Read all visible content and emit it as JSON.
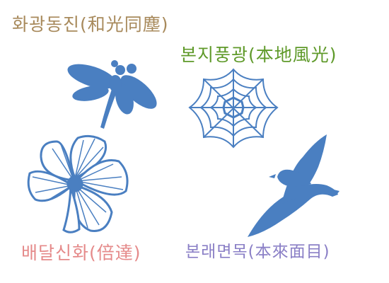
{
  "labels": {
    "top_left": "화광동진(和光同塵)",
    "top_right": "본지풍광(本地風光)",
    "bottom_left": "배달신화(倍達)",
    "bottom_right": "본래면목(本來面目)"
  },
  "colors": {
    "top_left": "#a88a5c",
    "top_right": "#5f9a2a",
    "bottom_left": "#e58a8a",
    "bottom_right": "#8a7fc6",
    "artwork": "#4a7fc1"
  },
  "icons": [
    "dragonfly-icon",
    "spiderweb-icon",
    "flower-icon",
    "bird-icon"
  ]
}
